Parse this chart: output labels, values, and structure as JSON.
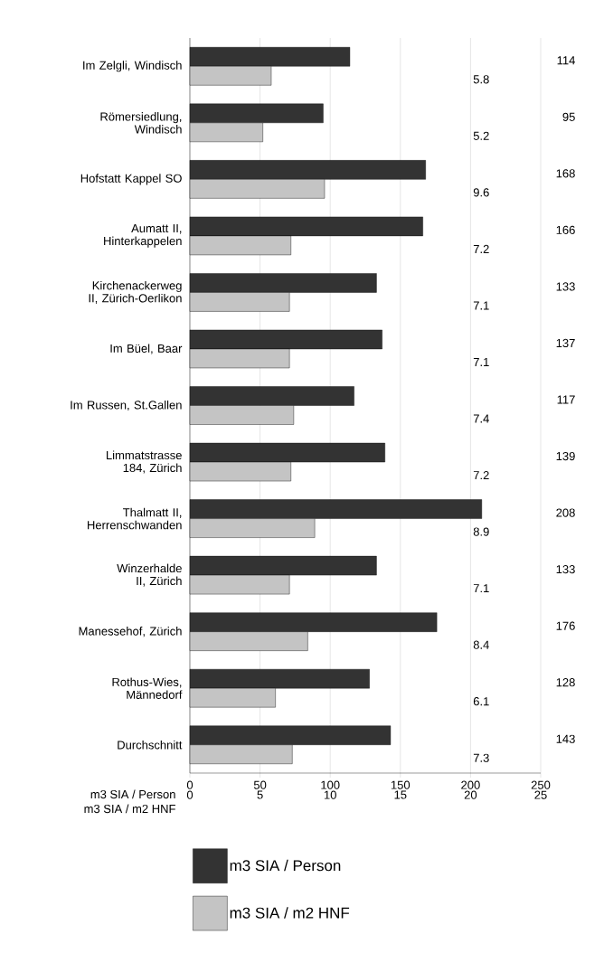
{
  "chart_data": {
    "type": "bar",
    "orientation": "horizontal",
    "categories": [
      "Im Zelgli, Windisch",
      "Römersiedlung, Windisch",
      "Hofstatt Kappel SO",
      "Aumatt II, Hinterkappelen",
      "Kirchenackerweg II, Zürich-Oerlikon",
      "Im Büel, Baar",
      "Im Russen, St.Gallen",
      "Limmatstrasse 184, Zürich",
      "Thalmatt II, Herrenschwanden",
      "Winzerhalde II, Zürich",
      "Manessehof, Zürich",
      "Rothus-Wies, Männedorf",
      "Durchschnitt"
    ],
    "series": [
      {
        "name": "m3 SIA / Person",
        "color": "#333333",
        "values": [
          114,
          95,
          168,
          166,
          133,
          137,
          117,
          139,
          208,
          133,
          176,
          128,
          143
        ]
      },
      {
        "name": "m3 SIA / m2 HNF",
        "color": "#c4c4c4",
        "axis": "x2",
        "values": [
          5.8,
          5.2,
          9.6,
          7.2,
          7.1,
          7.1,
          7.4,
          7.2,
          8.9,
          7.1,
          8.4,
          6.1,
          7.3
        ]
      }
    ],
    "xlabel": "m3 SIA / Person",
    "x2label": "m3 SIA / m2 HNF",
    "xlim": [
      0,
      250
    ],
    "xticks": [
      0,
      50,
      100,
      150,
      200,
      250
    ],
    "x2lim": [
      0,
      25
    ],
    "x2ticks": [
      0,
      5,
      10,
      15,
      20,
      25
    ],
    "grid": "x",
    "legend": "bottom",
    "data_labels": true
  }
}
